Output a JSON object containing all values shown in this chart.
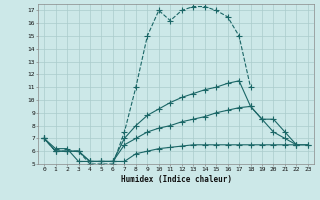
{
  "xlabel": "Humidex (Indice chaleur)",
  "bg_color": "#cce8e8",
  "grid_color": "#aacccc",
  "line_color": "#1a6666",
  "xlim": [
    -0.5,
    23.5
  ],
  "ylim": [
    5,
    17.5
  ],
  "yticks": [
    5,
    6,
    7,
    8,
    9,
    10,
    11,
    12,
    13,
    14,
    15,
    16,
    17
  ],
  "xticks": [
    0,
    1,
    2,
    3,
    4,
    5,
    6,
    7,
    8,
    9,
    10,
    11,
    12,
    13,
    14,
    15,
    16,
    17,
    18,
    19,
    20,
    21,
    22,
    23
  ],
  "series": [
    {
      "x": [
        0,
        1,
        2,
        3,
        4,
        5,
        6,
        7,
        8,
        9,
        10,
        11,
        12,
        13,
        14,
        15,
        16,
        17,
        18
      ],
      "y": [
        7,
        6,
        6,
        6,
        5,
        5,
        5,
        7.5,
        11,
        15,
        17,
        16.2,
        17,
        17.3,
        17.3,
        17,
        16.5,
        15,
        11
      ],
      "marker": "+",
      "markersize": 4,
      "linewidth": 0.8,
      "linestyle": "--"
    },
    {
      "x": [
        0,
        1,
        2,
        3,
        4,
        5,
        6,
        7,
        8,
        9,
        10,
        11,
        12,
        13,
        14,
        15,
        16,
        17,
        18,
        19,
        20,
        21,
        22
      ],
      "y": [
        7,
        6,
        6,
        6,
        5.2,
        5.2,
        5.2,
        7,
        8,
        8.8,
        9.3,
        9.8,
        10.2,
        10.5,
        10.8,
        11,
        11.3,
        11.5,
        9.5,
        8.5,
        7.5,
        7,
        6.5
      ],
      "marker": "+",
      "markersize": 4,
      "linewidth": 0.8,
      "linestyle": "-"
    },
    {
      "x": [
        0,
        1,
        2,
        3,
        4,
        5,
        6,
        7,
        8,
        9,
        10,
        11,
        12,
        13,
        14,
        15,
        16,
        17,
        18,
        19,
        20,
        21,
        22,
        23
      ],
      "y": [
        7,
        6,
        6,
        6,
        5.2,
        5.2,
        5.2,
        6.5,
        7,
        7.5,
        7.8,
        8,
        8.3,
        8.5,
        8.7,
        9,
        9.2,
        9.4,
        9.5,
        8.5,
        8.5,
        7.5,
        6.5,
        6.5
      ],
      "marker": "+",
      "markersize": 4,
      "linewidth": 0.8,
      "linestyle": "-"
    },
    {
      "x": [
        0,
        1,
        2,
        3,
        4,
        5,
        6,
        7,
        8,
        9,
        10,
        11,
        12,
        13,
        14,
        15,
        16,
        17,
        18,
        19,
        20,
        21,
        22,
        23
      ],
      "y": [
        7,
        6.2,
        6.2,
        5.2,
        5.2,
        5.2,
        5.2,
        5.2,
        5.8,
        6,
        6.2,
        6.3,
        6.4,
        6.5,
        6.5,
        6.5,
        6.5,
        6.5,
        6.5,
        6.5,
        6.5,
        6.5,
        6.5,
        6.5
      ],
      "marker": "+",
      "markersize": 4,
      "linewidth": 0.8,
      "linestyle": "-"
    }
  ]
}
